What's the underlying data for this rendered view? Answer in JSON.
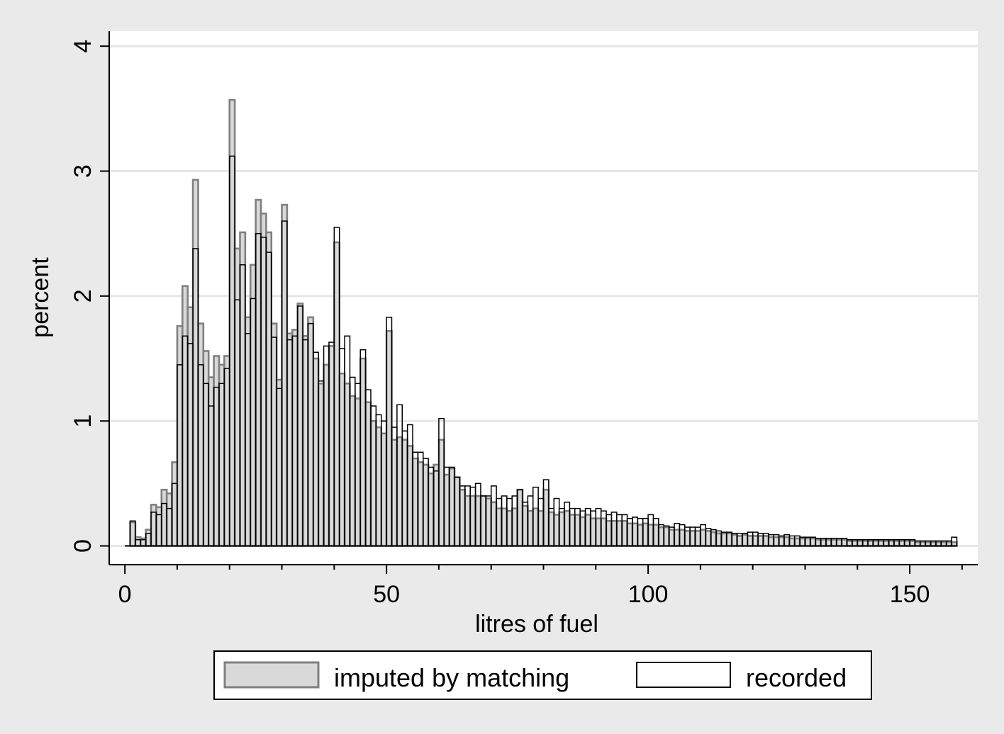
{
  "chart_data": {
    "type": "bar",
    "title": "",
    "xlabel": "litres of fuel",
    "ylabel": "percent",
    "xlim": [
      -3,
      163
    ],
    "ylim": [
      -0.15,
      4.12
    ],
    "xticks": [
      0,
      50,
      100,
      150
    ],
    "yticks": [
      0,
      1,
      2,
      3,
      4
    ],
    "grid": "horizontal",
    "legend_position": "bottom",
    "bin_width": 1,
    "bin_start": 0,
    "series": [
      {
        "name": "imputed by matching",
        "fill": "#d9d9d9",
        "stroke": "#808080",
        "values": [
          0.0,
          0.19,
          0.07,
          0.06,
          0.13,
          0.33,
          0.31,
          0.45,
          0.42,
          0.67,
          1.76,
          2.08,
          1.91,
          2.93,
          1.78,
          1.56,
          1.35,
          1.52,
          1.45,
          1.52,
          3.57,
          2.38,
          2.51,
          1.83,
          2.25,
          2.77,
          2.66,
          2.51,
          1.78,
          1.33,
          2.73,
          1.7,
          1.73,
          1.94,
          1.68,
          1.83,
          1.5,
          1.3,
          1.45,
          1.6,
          2.43,
          1.38,
          1.3,
          1.2,
          1.18,
          1.5,
          1.15,
          1.0,
          0.95,
          0.9,
          1.72,
          0.85,
          0.87,
          0.85,
          0.8,
          0.7,
          0.67,
          0.65,
          0.58,
          0.65,
          0.85,
          0.57,
          0.62,
          0.55,
          0.45,
          0.4,
          0.4,
          0.4,
          0.4,
          0.38,
          0.35,
          0.3,
          0.3,
          0.28,
          0.3,
          0.45,
          0.32,
          0.28,
          0.3,
          0.28,
          0.45,
          0.27,
          0.25,
          0.27,
          0.28,
          0.25,
          0.25,
          0.23,
          0.25,
          0.22,
          0.22,
          0.22,
          0.2,
          0.2,
          0.2,
          0.2,
          0.18,
          0.18,
          0.17,
          0.18,
          0.17,
          0.17,
          0.15,
          0.15,
          0.13,
          0.13,
          0.13,
          0.12,
          0.12,
          0.12,
          0.13,
          0.12,
          0.11,
          0.1,
          0.1,
          0.1,
          0.09,
          0.08,
          0.09,
          0.08,
          0.08,
          0.08,
          0.08,
          0.07,
          0.07,
          0.07,
          0.07,
          0.06,
          0.06,
          0.06,
          0.06,
          0.06,
          0.05,
          0.05,
          0.05,
          0.05,
          0.05,
          0.05,
          0.04,
          0.04,
          0.04,
          0.04,
          0.04,
          0.04,
          0.04,
          0.04,
          0.04,
          0.04,
          0.04,
          0.04,
          0.04,
          0.03,
          0.03,
          0.03,
          0.03,
          0.03,
          0.03,
          0.03,
          0.03
        ]
      },
      {
        "name": "recorded",
        "fill": "#ffffff",
        "stroke": "#000000",
        "values": [
          0.0,
          0.2,
          0.05,
          0.05,
          0.1,
          0.27,
          0.25,
          0.34,
          0.3,
          0.5,
          1.45,
          1.68,
          1.62,
          2.38,
          1.45,
          1.3,
          1.12,
          1.27,
          1.3,
          1.42,
          3.12,
          1.97,
          2.25,
          1.7,
          1.98,
          2.5,
          2.47,
          2.35,
          1.67,
          1.26,
          2.6,
          1.65,
          1.68,
          1.92,
          1.65,
          1.78,
          1.55,
          1.32,
          1.6,
          1.63,
          2.55,
          1.58,
          1.68,
          1.35,
          1.3,
          1.57,
          1.25,
          1.12,
          1.05,
          1.0,
          1.83,
          0.95,
          1.13,
          0.92,
          0.97,
          0.75,
          0.75,
          0.7,
          0.63,
          0.6,
          1.02,
          0.63,
          0.63,
          0.55,
          0.48,
          0.48,
          0.47,
          0.5,
          0.4,
          0.4,
          0.48,
          0.38,
          0.4,
          0.38,
          0.4,
          0.45,
          0.35,
          0.4,
          0.47,
          0.38,
          0.53,
          0.3,
          0.38,
          0.3,
          0.35,
          0.3,
          0.3,
          0.28,
          0.3,
          0.28,
          0.3,
          0.28,
          0.25,
          0.27,
          0.25,
          0.25,
          0.22,
          0.23,
          0.22,
          0.22,
          0.25,
          0.22,
          0.17,
          0.16,
          0.15,
          0.18,
          0.17,
          0.15,
          0.15,
          0.15,
          0.17,
          0.14,
          0.13,
          0.12,
          0.11,
          0.11,
          0.1,
          0.1,
          0.1,
          0.11,
          0.11,
          0.1,
          0.1,
          0.09,
          0.09,
          0.08,
          0.09,
          0.08,
          0.08,
          0.07,
          0.07,
          0.07,
          0.06,
          0.06,
          0.06,
          0.06,
          0.06,
          0.06,
          0.05,
          0.05,
          0.05,
          0.05,
          0.05,
          0.05,
          0.05,
          0.05,
          0.05,
          0.05,
          0.05,
          0.05,
          0.05,
          0.04,
          0.04,
          0.04,
          0.04,
          0.04,
          0.04,
          0.04,
          0.07
        ]
      }
    ]
  }
}
